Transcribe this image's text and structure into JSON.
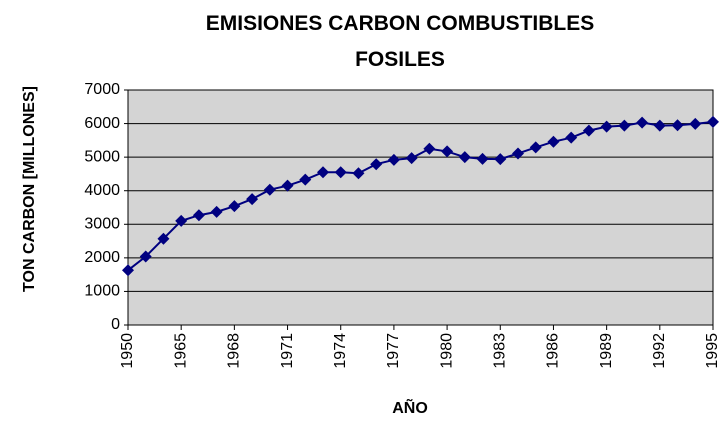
{
  "chart_data": {
    "type": "line",
    "title": "EMISIONES CARBON COMBUSTIBLES FOSILES",
    "x_label": "AÑO",
    "y_label": "TON CARBON [MILLONES]",
    "categories": [
      "1950",
      null,
      null,
      "1965",
      null,
      null,
      "1968",
      null,
      null,
      "1971",
      null,
      null,
      "1974",
      null,
      null,
      "1977",
      null,
      null,
      "1980",
      null,
      null,
      "1983",
      null,
      null,
      "1986",
      null,
      null,
      "1989",
      null,
      null,
      "1992",
      null,
      null,
      "1995"
    ],
    "series": [
      {
        "name": "Emisiones",
        "color": "#000080",
        "values": [
          1630,
          2040,
          2570,
          3100,
          3270,
          3370,
          3540,
          3750,
          4030,
          4150,
          4330,
          4550,
          4550,
          4520,
          4790,
          4920,
          4970,
          5250,
          5170,
          5000,
          4950,
          4940,
          5110,
          5290,
          5460,
          5580,
          5790,
          5910,
          5940,
          6030,
          5940,
          5950,
          5990,
          6050
        ]
      }
    ],
    "ylim": [
      0,
      7000
    ],
    "yticks": [
      0,
      1000,
      2000,
      3000,
      4000,
      5000,
      6000,
      7000
    ],
    "grid": true,
    "plot_background": "#d4d4d4"
  }
}
